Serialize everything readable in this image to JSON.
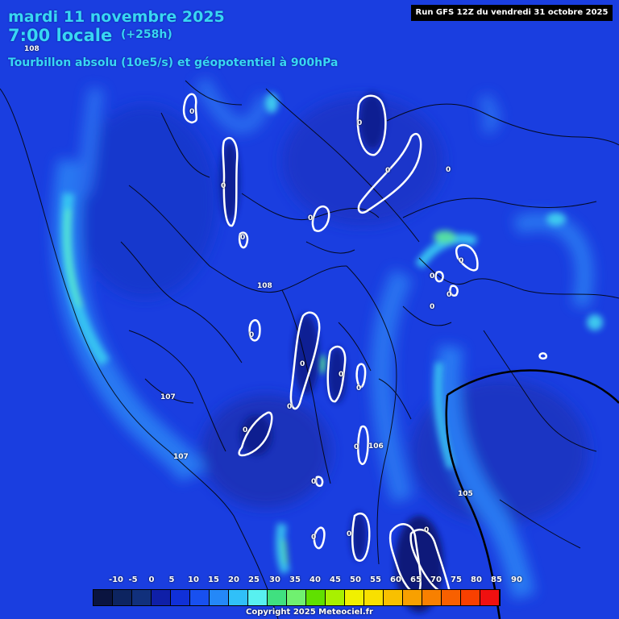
{
  "header": {
    "date": "mardi 11 novembre 2025",
    "time": "7:00 locale",
    "lead": "(+258h)",
    "title": "Tourbillon absolu (10e5/s) et géopotentiel à 900hPa",
    "run": "Run GFS 12Z du vendredi 31 octobre 2025"
  },
  "legend": {
    "labels": [
      "-10",
      "-5",
      "0",
      "5",
      "10",
      "15",
      "20",
      "25",
      "30",
      "35",
      "40",
      "45",
      "50",
      "55",
      "60",
      "65",
      "70",
      "75",
      "80",
      "85",
      "90"
    ],
    "colors": [
      "#0a1440",
      "#0d2460",
      "#11307c",
      "#0f1fa8",
      "#1030d8",
      "#1850f0",
      "#2488f8",
      "#30c0f8",
      "#58f0f0",
      "#40e080",
      "#70f070",
      "#60e000",
      "#a8f000",
      "#f0f000",
      "#f8e000",
      "#f8c000",
      "#f8a000",
      "#f88000",
      "#f86000",
      "#f84000",
      "#f01010"
    ]
  },
  "copyright": "Copyright 2025 Meteociel.fr",
  "geopotential_labels": [
    "108",
    "108",
    "107",
    "107",
    "106",
    "105"
  ],
  "contour_labels": [
    "0",
    "0",
    "0",
    "0",
    "0",
    "0",
    "0",
    "0",
    "0",
    "0",
    "0",
    "0",
    "0",
    "0",
    "0",
    "0",
    "0",
    "0",
    "0",
    "0",
    "0",
    "0"
  ]
}
